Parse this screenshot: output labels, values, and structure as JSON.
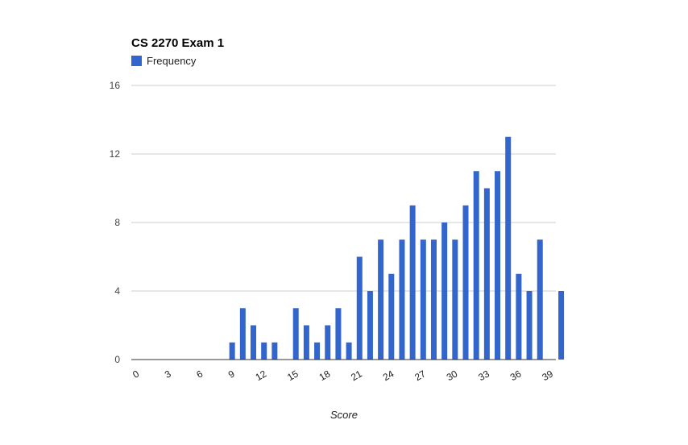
{
  "chart_data": {
    "type": "bar",
    "title": "CS 2270 Exam 1",
    "xlabel": "Score",
    "ylabel": "",
    "ylim": [
      0,
      16
    ],
    "yticks": [
      0,
      4,
      8,
      12,
      16
    ],
    "xlim": [
      0,
      40
    ],
    "xticks": [
      0,
      3,
      6,
      9,
      12,
      15,
      18,
      21,
      24,
      27,
      30,
      33,
      36,
      39
    ],
    "xtick_labels": [
      "0",
      "3",
      "6",
      "9",
      "12",
      "15",
      "18",
      "21",
      "24",
      "27",
      "30",
      "33",
      "36",
      "39"
    ],
    "legend_position": "top-left",
    "grid": true,
    "series": [
      {
        "name": "Frequency",
        "color": "#3366cc",
        "x": [
          9,
          10,
          11,
          12,
          13,
          15,
          16,
          17,
          18,
          19,
          20,
          21,
          22,
          23,
          24,
          25,
          26,
          27,
          28,
          29,
          30,
          31,
          32,
          33,
          34,
          35,
          36,
          37,
          38,
          40
        ],
        "values": [
          1,
          3,
          2,
          1,
          1,
          3,
          2,
          1,
          2,
          3,
          1,
          6,
          4,
          7,
          5,
          7,
          9,
          7,
          7,
          8,
          7,
          9,
          11,
          10,
          11,
          13,
          5,
          4,
          7,
          4
        ]
      }
    ]
  }
}
